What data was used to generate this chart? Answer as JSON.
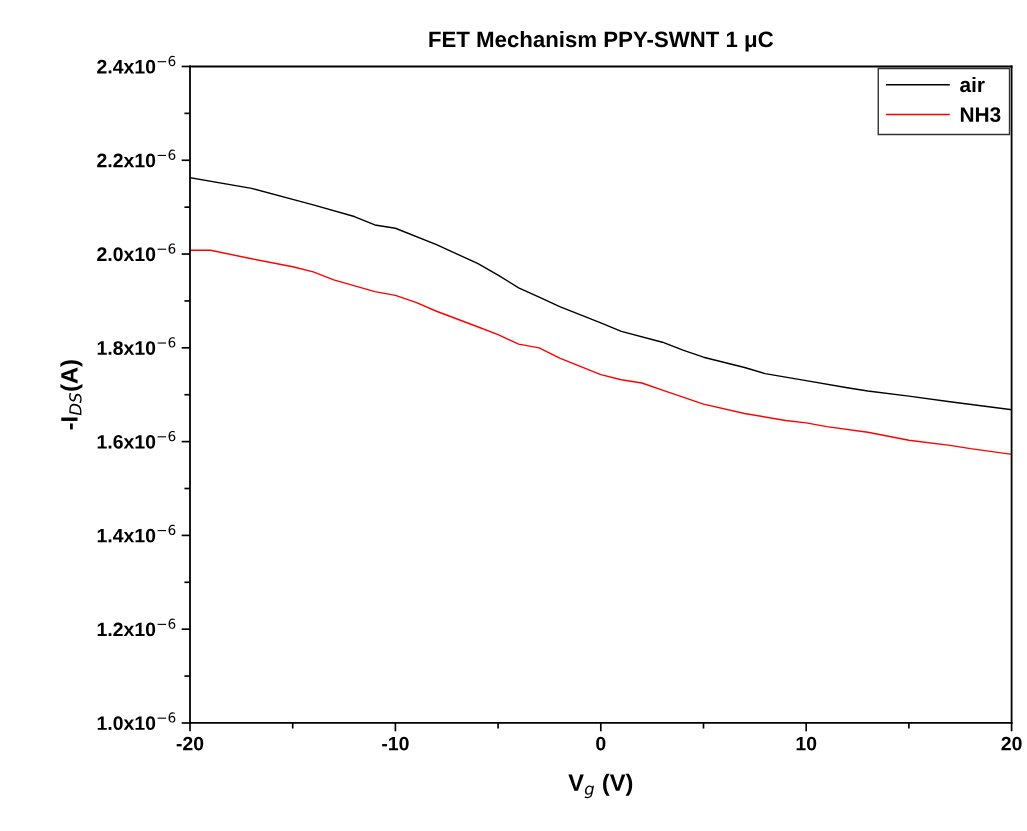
{
  "chart_data": {
    "type": "line",
    "title": "FET Mechanism PPY-SWNT 1 μC",
    "xlabel": "V$_{g}$ (V)",
    "ylabel": "-I$_{DS}$(A)",
    "xlim": [
      -20,
      20
    ],
    "xticks": [
      -20,
      -10,
      0,
      10,
      20
    ],
    "ylim": [
      1e-06,
      2.4e-06
    ],
    "yticks": [
      {
        "value": 1e-06,
        "label": "1.0x10$^{−6}$"
      },
      {
        "value": 1.2e-06,
        "label": "1.2x10$^{−6}$"
      },
      {
        "value": 1.4e-06,
        "label": "1.4x10$^{−6}$"
      },
      {
        "value": 1.6e-06,
        "label": "1.6x10$^{−6}$"
      },
      {
        "value": 1.8e-06,
        "label": "1.8x10$^{−6}$"
      },
      {
        "value": 2e-06,
        "label": "2.0x10$^{−6}$"
      },
      {
        "value": 2.2e-06,
        "label": "2.2x10$^{−6}$"
      },
      {
        "value": 2.4e-06,
        "label": "2.4x10$^{−6}$"
      }
    ],
    "grid": false,
    "legend": "top right",
    "marker": "none",
    "line_style": "solid",
    "series": [
      {
        "name": "air",
        "color": "#000000",
        "x": [
          -20,
          -17,
          -14,
          -12,
          -11,
          -10,
          -8,
          -6,
          -5,
          -4,
          -3,
          -2,
          0,
          1,
          3,
          4,
          5,
          7,
          8,
          10,
          12,
          13,
          15,
          17,
          20
        ],
        "values": [
          2.163e-06,
          2.14e-06,
          2.105e-06,
          2.08e-06,
          2.062e-06,
          2.055e-06,
          2.02e-06,
          1.98e-06,
          1.955e-06,
          1.928e-06,
          1.908e-06,
          1.888e-06,
          1.853e-06,
          1.835e-06,
          1.812e-06,
          1.795e-06,
          1.78e-06,
          1.758e-06,
          1.745e-06,
          1.73e-06,
          1.715e-06,
          1.708e-06,
          1.697e-06,
          1.685e-06,
          1.668e-06
        ]
      },
      {
        "name": "NH3",
        "color": "#ff0000",
        "x": [
          -20,
          -19,
          -17,
          -15,
          -14,
          -13,
          -11,
          -10,
          -9,
          -8,
          -6,
          -5,
          -4,
          -3,
          -2,
          0,
          1,
          2,
          3,
          5,
          7,
          9,
          10,
          11,
          13,
          15,
          17,
          18,
          20
        ],
        "values": [
          2.008e-06,
          2.008e-06,
          1.99e-06,
          1.973e-06,
          1.962e-06,
          1.945e-06,
          1.92e-06,
          1.912e-06,
          1.897e-06,
          1.878e-06,
          1.845e-06,
          1.828e-06,
          1.808e-06,
          1.8e-06,
          1.778e-06,
          1.743e-06,
          1.732e-06,
          1.725e-06,
          1.71e-06,
          1.68e-06,
          1.66e-06,
          1.645e-06,
          1.64e-06,
          1.632e-06,
          1.62e-06,
          1.603e-06,
          1.592e-06,
          1.585e-06,
          1.573e-06
        ]
      }
    ]
  }
}
